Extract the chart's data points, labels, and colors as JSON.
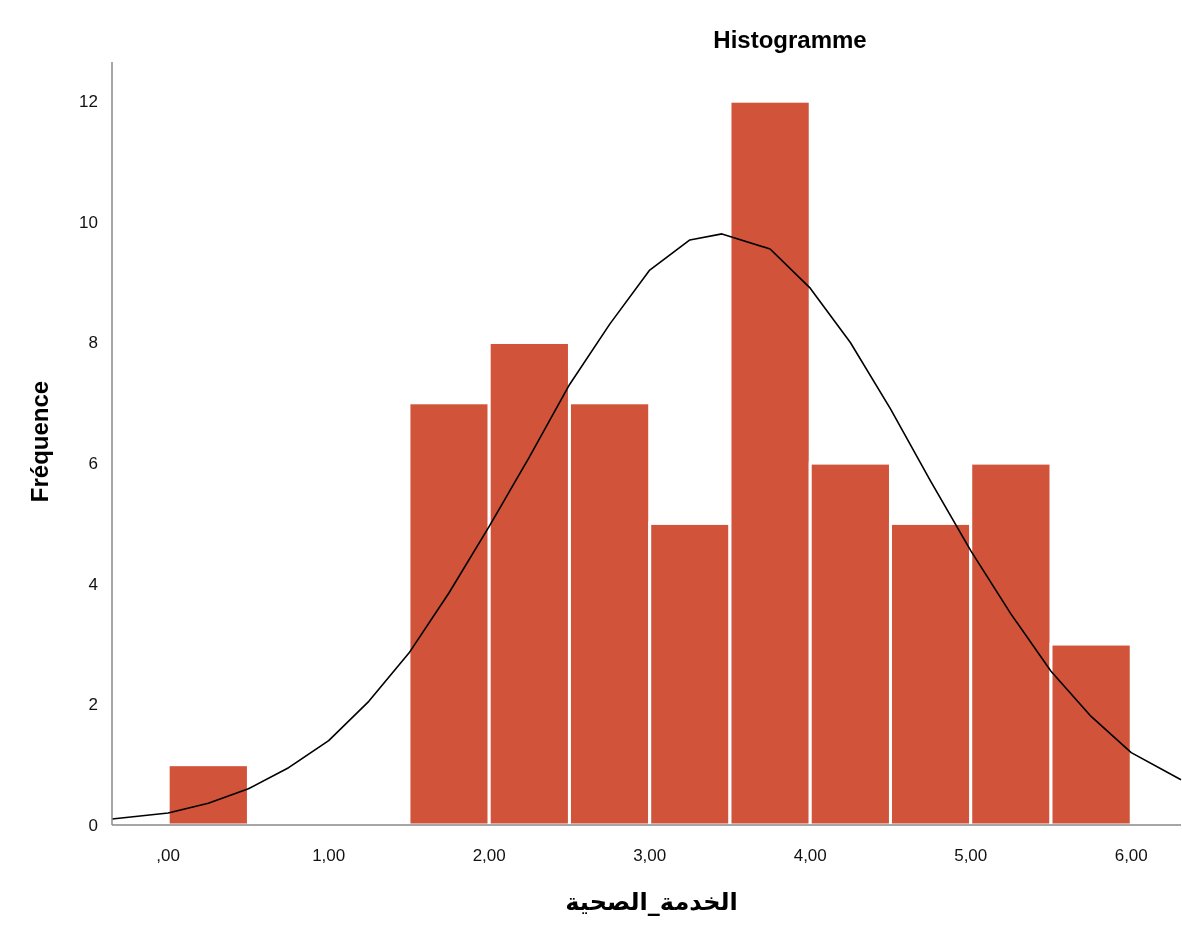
{
  "chart_data": {
    "type": "histogram",
    "title": "Histogramme",
    "xlabel": "الخدمة_الصحية",
    "ylabel": "Fréquence",
    "bins": [
      0,
      0.5,
      1,
      1.5,
      2,
      2.5,
      3,
      3.5,
      4,
      4.5,
      5,
      5.5,
      6
    ],
    "values": [
      1,
      0,
      0,
      7,
      8,
      7,
      5,
      12,
      6,
      5,
      6,
      3
    ],
    "color": "#d0533a",
    "xlim": [
      -0.35,
      6.31
    ],
    "ylim": [
      0,
      12.65
    ],
    "xticks": [
      {
        "value": 0,
        "label": ",00"
      },
      {
        "value": 1,
        "label": "1,00"
      },
      {
        "value": 2,
        "label": "2,00"
      },
      {
        "value": 3,
        "label": "3,00"
      },
      {
        "value": 4,
        "label": "4,00"
      },
      {
        "value": 5,
        "label": "5,00"
      },
      {
        "value": 6,
        "label": "6,00"
      }
    ],
    "yticks": [
      0,
      2,
      4,
      6,
      8,
      10,
      12
    ],
    "series": [
      {
        "type": "line",
        "color": "#000000",
        "x": [
          -0.35,
          0,
          0.25,
          0.5,
          0.75,
          1,
          1.25,
          1.5,
          1.75,
          2,
          2.25,
          2.5,
          2.75,
          3,
          3.25,
          3.45,
          3.75,
          4,
          4.25,
          4.5,
          4.75,
          5,
          5.25,
          5.5,
          5.75,
          6,
          6.31
        ],
        "values": [
          0.1,
          0.2,
          0.36,
          0.6,
          0.95,
          1.4,
          2.05,
          2.85,
          3.85,
          4.95,
          6.1,
          7.3,
          8.3,
          9.2,
          9.7,
          9.8,
          9.55,
          8.9,
          8,
          6.9,
          5.7,
          4.55,
          3.5,
          2.55,
          1.8,
          1.2,
          0.75
        ]
      }
    ]
  }
}
